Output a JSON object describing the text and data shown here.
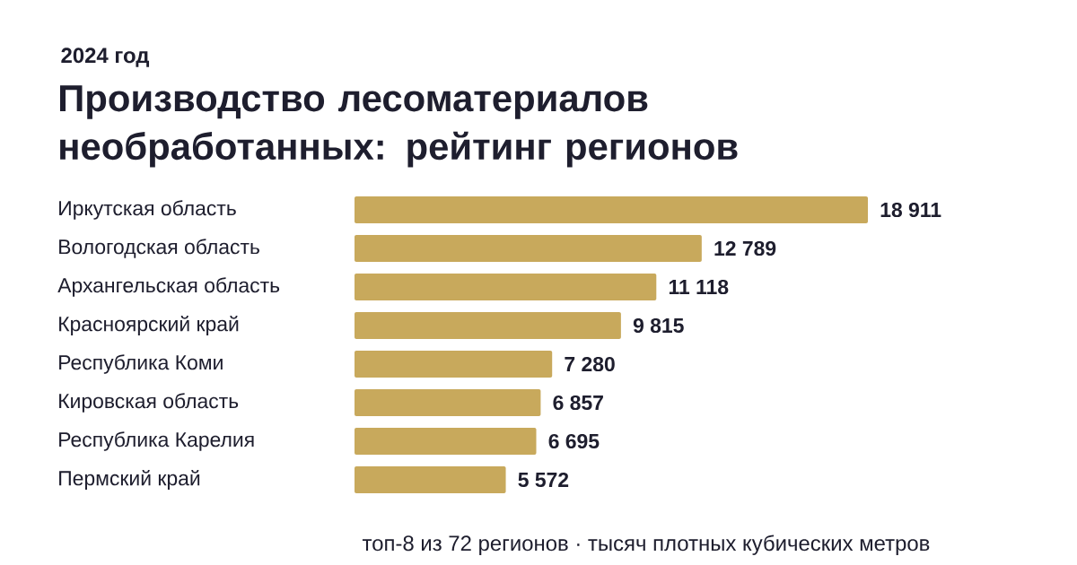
{
  "chart_data": {
    "type": "bar",
    "orientation": "horizontal",
    "title": "Производство лесоматериалов необработанных: рейтинг регионов",
    "subtitle": "2024 год",
    "categories": [
      "Иркутская область",
      "Вологодская область",
      "Архангельская область",
      "Красноярский край",
      "Республика Коми",
      "Кировская область",
      "Республика Карелия",
      "Пермский край"
    ],
    "values": [
      18911,
      12789,
      11118,
      9815,
      7280,
      6857,
      6695,
      5572
    ],
    "value_labels": [
      "18 911",
      "12 789",
      "11 118",
      "9 815",
      "7 280",
      "6 857",
      "6 695",
      "5 572"
    ],
    "color": "#c8a95c",
    "annotations": [
      "топ-8 из 72 регионов · тысяч плотных кубических метров"
    ]
  }
}
